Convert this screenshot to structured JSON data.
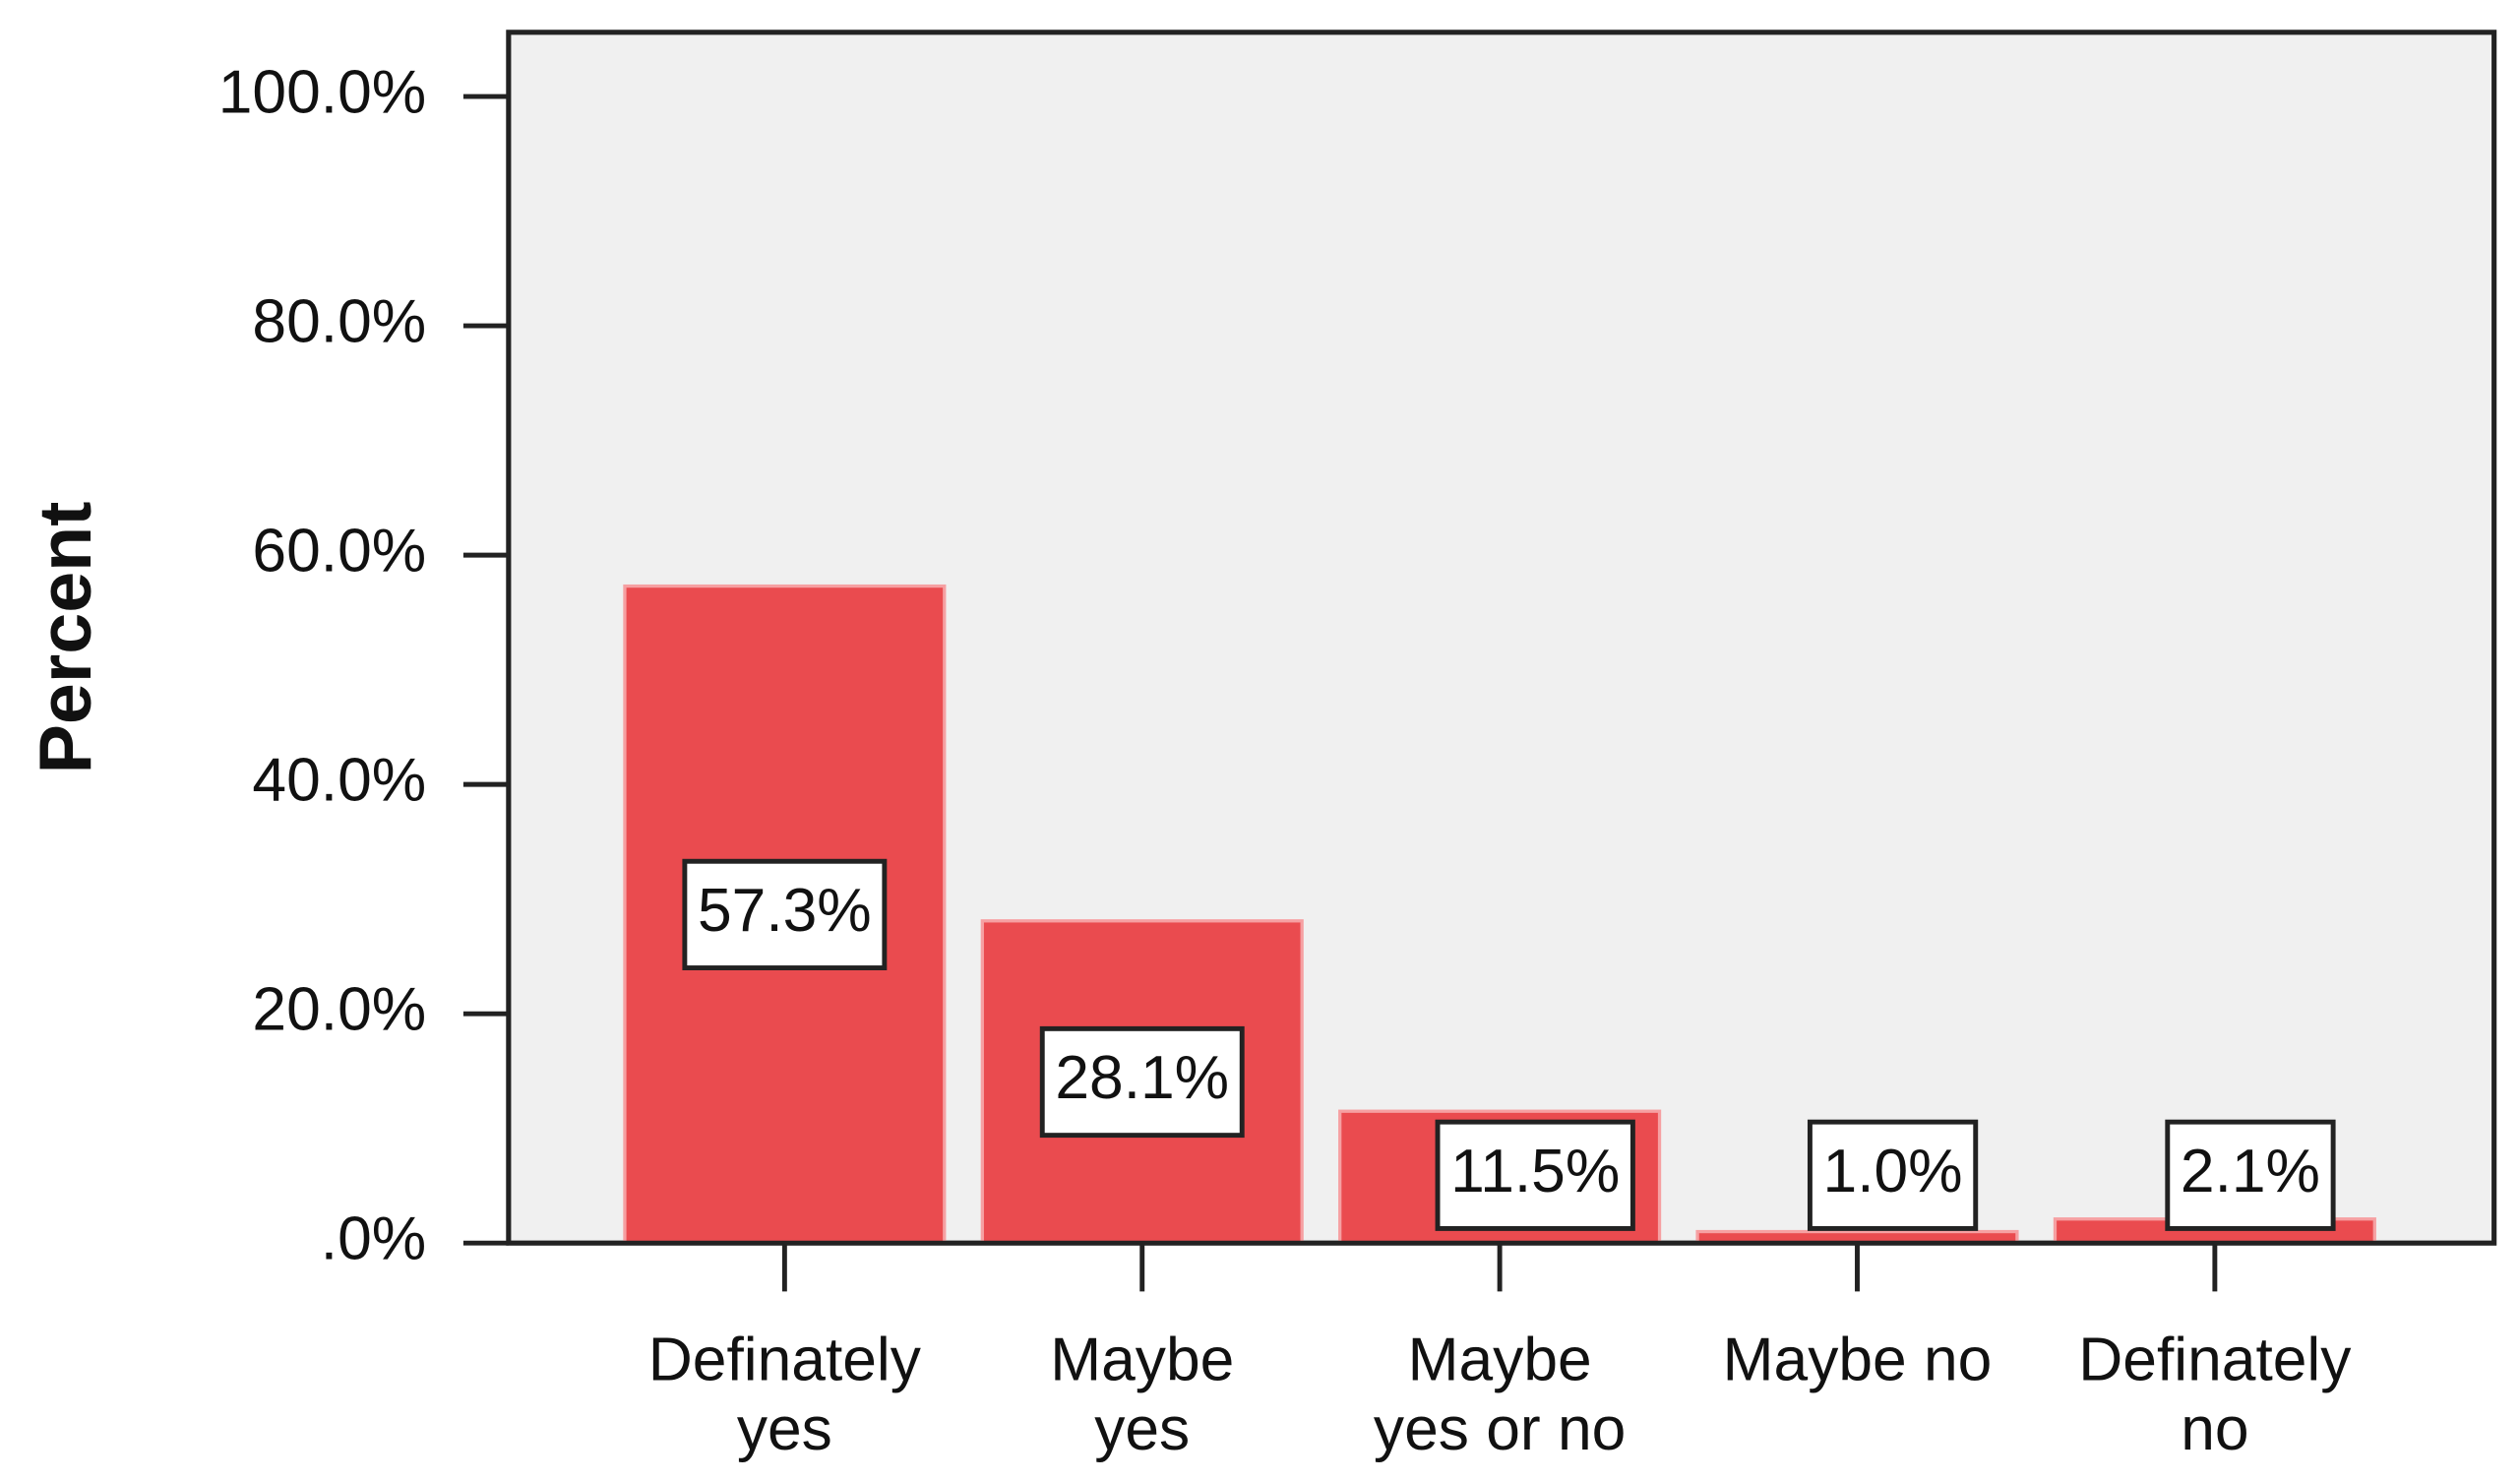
{
  "chart_data": {
    "type": "bar",
    "y_label": "Percent",
    "categories": [
      [
        "Definately",
        "yes"
      ],
      [
        "Maybe",
        "yes"
      ],
      [
        "Maybe",
        "yes or no"
      ],
      [
        "Maybe no"
      ],
      [
        "Definately",
        "no"
      ]
    ],
    "values": [
      57.3,
      28.1,
      11.5,
      1.0,
      2.1
    ],
    "value_labels": [
      "57.3%",
      "28.1%",
      "11.5%",
      "1.0%",
      "2.1%"
    ],
    "color": "#ea4b4f",
    "ylim": [
      0,
      105.6
    ],
    "yticks": [
      {
        "value": 0,
        "label": ".0%"
      },
      {
        "value": 20,
        "label": "20.0%"
      },
      {
        "value": 40,
        "label": "40.0%"
      },
      {
        "value": 60,
        "label": "60.0%"
      },
      {
        "value": 80,
        "label": "80.0%"
      },
      {
        "value": 100,
        "label": "100.0%"
      }
    ]
  }
}
